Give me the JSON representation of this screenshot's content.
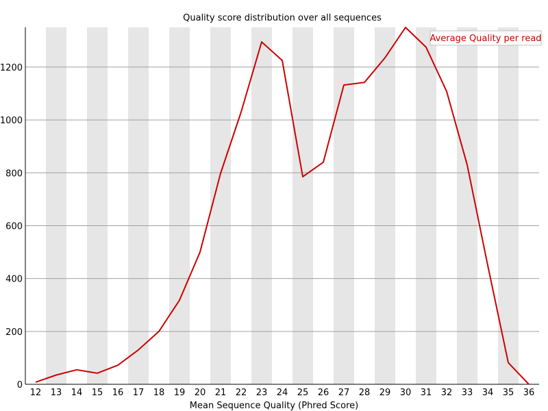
{
  "chart_data": {
    "type": "line",
    "title": "Quality score distribution over all sequences",
    "xlabel": "Mean Sequence Quality (Phred Score)",
    "ylabel": "",
    "x": [
      12,
      13,
      14,
      15,
      16,
      17,
      18,
      19,
      20,
      21,
      22,
      23,
      24,
      25,
      26,
      27,
      28,
      29,
      30,
      31,
      32,
      33,
      34,
      35,
      36
    ],
    "ylim": [
      0,
      1350
    ],
    "yticks": [
      0,
      200,
      400,
      600,
      800,
      1000,
      1200
    ],
    "series": [
      {
        "name": "Average Quality per read",
        "color": "#cc0000",
        "values": [
          8,
          35,
          55,
          42,
          72,
          130,
          200,
          318,
          500,
          798,
          1030,
          1295,
          1225,
          785,
          840,
          1132,
          1142,
          1235,
          1350,
          1275,
          1108,
          830,
          450,
          82,
          0
        ]
      }
    ],
    "grid": true,
    "legend_position": "top-right",
    "band_color": "#e6e6e6",
    "gridline_color": "#a0a0a0"
  }
}
